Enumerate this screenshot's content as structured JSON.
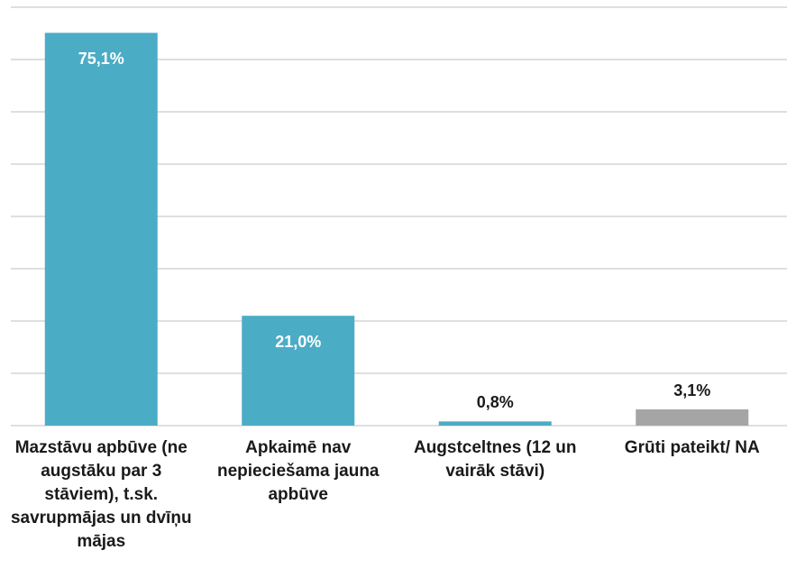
{
  "chart_data": {
    "type": "bar",
    "categories": [
      "Mazstāvu apbūve (ne augstāku par 3 stāviem), t.sk. savrupmājas un dvīņu mājas",
      "Apkaimē nav nepieciešama jauna apbūve",
      "Augstceltnes (12 un vairāk stāvi)",
      "Grūti pateikt/ NA"
    ],
    "values": [
      75.1,
      21.0,
      0.8,
      3.1
    ],
    "value_labels": [
      "75,1%",
      "21,0%",
      "0,8%",
      "3,1%"
    ],
    "colors": [
      "#4bacc6",
      "#4bacc6",
      "#4bacc6",
      "#a5a5a5"
    ],
    "ylim": [
      0,
      80
    ],
    "yticks": [
      0,
      10,
      20,
      30,
      40,
      50,
      60,
      70,
      80
    ],
    "grid": true
  }
}
